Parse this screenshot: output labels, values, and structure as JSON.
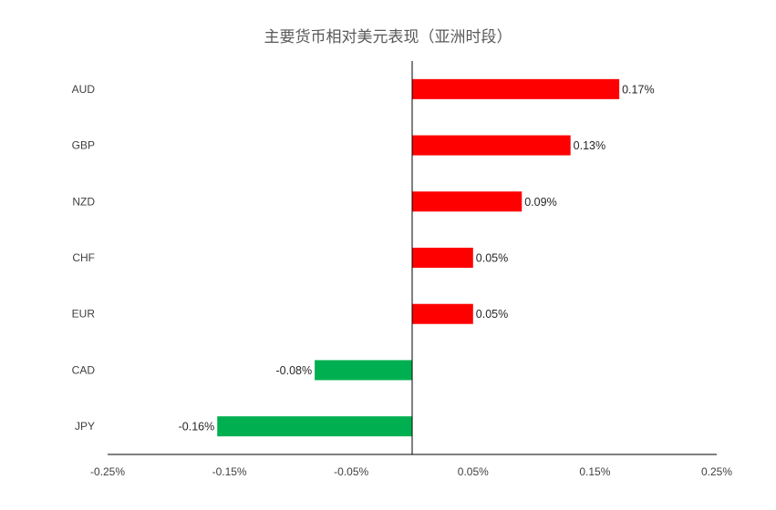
{
  "chart_data": {
    "type": "bar",
    "orientation": "horizontal",
    "title": "主要货币相对美元表现（亚洲时段）",
    "categories": [
      "AUD",
      "GBP",
      "NZD",
      "CHF",
      "EUR",
      "CAD",
      "JPY"
    ],
    "values": [
      0.17,
      0.13,
      0.09,
      0.05,
      0.05,
      -0.08,
      -0.16
    ],
    "data_labels": [
      "0.17%",
      "0.13%",
      "0.09%",
      "0.05%",
      "0.05%",
      "-0.08%",
      "-0.16%"
    ],
    "xlim": [
      -0.25,
      0.25
    ],
    "xticks": [
      -0.25,
      -0.15,
      -0.05,
      0.05,
      0.15,
      0.25
    ],
    "xtick_labels": [
      "-0.25%",
      "-0.15%",
      "-0.05%",
      "0.05%",
      "0.15%",
      "0.25%"
    ],
    "grid": false,
    "legend": "none",
    "colors": {
      "positive": "#ff0000",
      "negative": "#00b050",
      "axis": "#000000"
    }
  }
}
